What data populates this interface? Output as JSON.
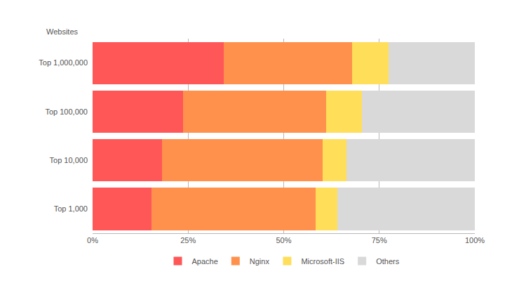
{
  "chart_data": {
    "type": "bar",
    "orientation": "horizontal",
    "stacked": true,
    "ylabel": "Websites",
    "categories": [
      "Top 1,000,000",
      "Top 100,000",
      "Top 10,000",
      "Top 1,000"
    ],
    "series": [
      {
        "name": "Apache",
        "color": "#ff5757",
        "values": [
          34.3,
          23.7,
          18.2,
          15.4
        ]
      },
      {
        "name": "Nginx",
        "color": "#ff914d",
        "values": [
          33.6,
          37.4,
          42.0,
          42.9
        ]
      },
      {
        "name": "Microsoft-IIS",
        "color": "#ffde59",
        "values": [
          9.5,
          9.4,
          6.2,
          5.7
        ]
      },
      {
        "name": "Others",
        "color": "#d9d9d9",
        "values": [
          22.6,
          29.5,
          33.6,
          36.0
        ]
      }
    ],
    "xlim": [
      0,
      100
    ],
    "xticks": [
      {
        "value": 0,
        "label": "0%"
      },
      {
        "value": 25,
        "label": "25%"
      },
      {
        "value": 50,
        "label": "50%"
      },
      {
        "value": 75,
        "label": "75%"
      },
      {
        "value": 100,
        "label": "100%"
      }
    ],
    "grid": true,
    "legend": "bottom"
  }
}
